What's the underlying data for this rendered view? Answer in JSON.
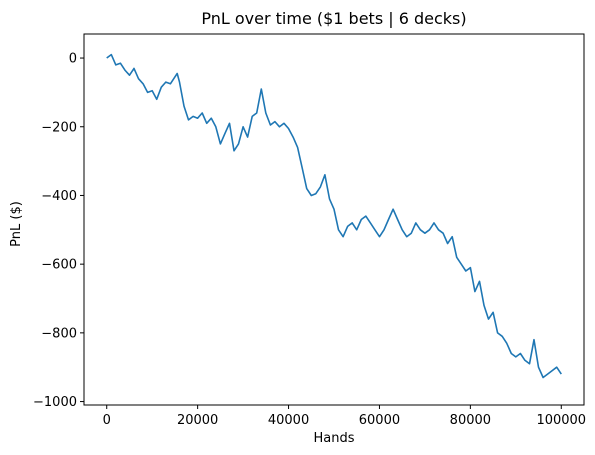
{
  "chart_data": {
    "type": "line",
    "title": "PnL over time ($1 bets | 6 decks)",
    "xlabel": "Hands",
    "ylabel": "PnL ($)",
    "xlim": [
      -5000,
      105000
    ],
    "ylim": [
      -1010,
      70
    ],
    "xticks": [
      0,
      20000,
      40000,
      60000,
      80000,
      100000
    ],
    "xtick_labels": [
      "0",
      "20000",
      "40000",
      "60000",
      "80000",
      "100000"
    ],
    "yticks": [
      0,
      -200,
      -400,
      -600,
      -800,
      -1000
    ],
    "ytick_labels": [
      "0",
      "−200",
      "−400",
      "−600",
      "−800",
      "−1000"
    ],
    "grid": false,
    "legend": false,
    "series": [
      {
        "color": "#1f77b4",
        "x": [
          0,
          1000,
          2000,
          3000,
          4000,
          5000,
          6000,
          7000,
          8000,
          9000,
          10000,
          11000,
          12000,
          13000,
          14000,
          15000,
          15500,
          16000,
          17000,
          18000,
          19000,
          20000,
          21000,
          22000,
          23000,
          24000,
          25000,
          26000,
          27000,
          28000,
          29000,
          30000,
          31000,
          32000,
          33000,
          34000,
          35000,
          36000,
          37000,
          38000,
          39000,
          40000,
          41000,
          42000,
          43000,
          44000,
          45000,
          46000,
          47000,
          48000,
          49000,
          50000,
          51000,
          52000,
          53000,
          54000,
          55000,
          56000,
          57000,
          58000,
          59000,
          60000,
          61000,
          62000,
          63000,
          64000,
          65000,
          66000,
          67000,
          68000,
          69000,
          70000,
          71000,
          72000,
          73000,
          74000,
          75000,
          76000,
          77000,
          78000,
          79000,
          80000,
          81000,
          82000,
          83000,
          84000,
          85000,
          86000,
          87000,
          88000,
          89000,
          90000,
          91000,
          92000,
          93000,
          94000,
          95000,
          96000,
          97000,
          98000,
          99000,
          100000
        ],
        "y": [
          0,
          10,
          -20,
          -15,
          -35,
          -50,
          -30,
          -60,
          -75,
          -100,
          -95,
          -120,
          -85,
          -70,
          -75,
          -55,
          -45,
          -70,
          -140,
          -180,
          -170,
          -175,
          -160,
          -190,
          -175,
          -200,
          -250,
          -220,
          -190,
          -270,
          -250,
          -200,
          -230,
          -170,
          -160,
          -90,
          -160,
          -195,
          -185,
          -200,
          -190,
          -205,
          -230,
          -260,
          -320,
          -380,
          -400,
          -395,
          -375,
          -340,
          -410,
          -440,
          -500,
          -520,
          -490,
          -480,
          -500,
          -470,
          -460,
          -480,
          -500,
          -520,
          -500,
          -470,
          -440,
          -470,
          -500,
          -520,
          -510,
          -480,
          -500,
          -510,
          -500,
          -480,
          -500,
          -510,
          -540,
          -520,
          -580,
          -600,
          -620,
          -610,
          -680,
          -650,
          -720,
          -760,
          -740,
          -800,
          -810,
          -830,
          -860,
          -870,
          -860,
          -880,
          -890,
          -820,
          -900,
          -930,
          -920,
          -910,
          -900,
          -920
        ]
      }
    ]
  }
}
